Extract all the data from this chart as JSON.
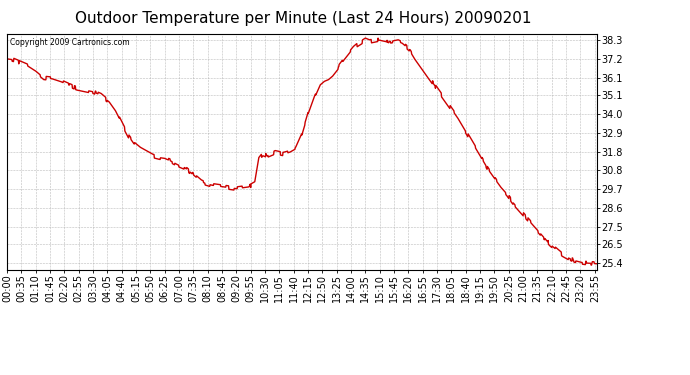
{
  "title": "Outdoor Temperature per Minute (Last 24 Hours) 20090201",
  "copyright_text": "Copyright 2009 Cartronics.com",
  "line_color": "#cc0000",
  "background_color": "#ffffff",
  "grid_color": "#aaaaaa",
  "ylim": [
    25.0,
    38.65
  ],
  "yticks": [
    25.4,
    26.5,
    27.5,
    28.6,
    29.7,
    30.8,
    31.8,
    32.9,
    34.0,
    35.1,
    36.1,
    37.2,
    38.3
  ],
  "title_fontsize": 11,
  "tick_fontsize": 7,
  "line_width": 1.0,
  "x_tick_labels": [
    "00:00",
    "00:35",
    "01:10",
    "01:45",
    "02:20",
    "02:55",
    "03:30",
    "04:05",
    "04:40",
    "05:15",
    "05:50",
    "06:25",
    "07:00",
    "07:35",
    "08:10",
    "08:45",
    "09:20",
    "09:55",
    "10:30",
    "11:05",
    "11:40",
    "12:15",
    "12:50",
    "13:25",
    "14:00",
    "14:35",
    "15:10",
    "15:45",
    "16:20",
    "16:55",
    "17:30",
    "18:05",
    "18:40",
    "19:15",
    "19:50",
    "20:25",
    "21:00",
    "21:35",
    "22:10",
    "22:45",
    "23:20",
    "23:55"
  ],
  "ctrl_x": [
    0,
    15,
    30,
    50,
    70,
    90,
    110,
    130,
    150,
    170,
    190,
    210,
    230,
    250,
    265,
    280,
    295,
    310,
    325,
    340,
    355,
    370,
    385,
    400,
    415,
    425,
    435,
    445,
    455,
    465,
    475,
    485,
    500,
    515,
    530,
    545,
    560,
    575,
    590,
    605,
    615,
    625,
    635,
    645,
    655,
    665,
    675,
    690,
    705,
    720,
    735,
    750,
    765,
    775,
    785,
    795,
    805,
    815,
    825,
    835,
    845,
    855,
    865,
    875,
    885,
    895,
    905,
    915,
    925,
    935,
    945,
    955,
    965,
    975,
    985,
    995,
    1010,
    1025,
    1040,
    1055,
    1070,
    1085,
    1100,
    1115,
    1130,
    1145,
    1160,
    1175,
    1190,
    1205,
    1220,
    1235,
    1250,
    1265,
    1280,
    1295,
    1310,
    1325,
    1340,
    1355,
    1370,
    1385,
    1400,
    1415,
    1430,
    1440
  ],
  "ctrl_y": [
    37.2,
    37.15,
    37.0,
    36.8,
    36.5,
    36.1,
    36.05,
    35.9,
    35.7,
    35.5,
    35.4,
    35.3,
    35.1,
    34.7,
    34.2,
    33.5,
    32.8,
    32.3,
    32.0,
    31.8,
    31.6,
    31.5,
    31.45,
    31.3,
    31.1,
    31.0,
    30.9,
    30.7,
    30.5,
    30.3,
    30.1,
    30.0,
    29.9,
    29.85,
    29.8,
    29.75,
    29.7,
    29.75,
    29.8,
    30.0,
    31.4,
    31.7,
    31.6,
    31.7,
    31.8,
    31.75,
    31.7,
    31.8,
    32.0,
    32.8,
    34.0,
    35.0,
    35.8,
    36.0,
    36.1,
    36.3,
    36.6,
    36.9,
    37.2,
    37.5,
    37.8,
    38.0,
    38.15,
    38.3,
    38.2,
    38.25,
    38.3,
    38.25,
    38.2,
    38.1,
    38.15,
    38.2,
    38.1,
    37.9,
    37.7,
    37.3,
    36.8,
    36.3,
    35.8,
    35.3,
    34.8,
    34.3,
    33.8,
    33.2,
    32.6,
    32.0,
    31.4,
    30.8,
    30.3,
    29.8,
    29.4,
    28.9,
    28.5,
    28.1,
    27.7,
    27.3,
    26.9,
    26.5,
    26.2,
    25.9,
    25.7,
    25.55,
    25.45,
    25.4,
    25.38,
    25.36
  ]
}
